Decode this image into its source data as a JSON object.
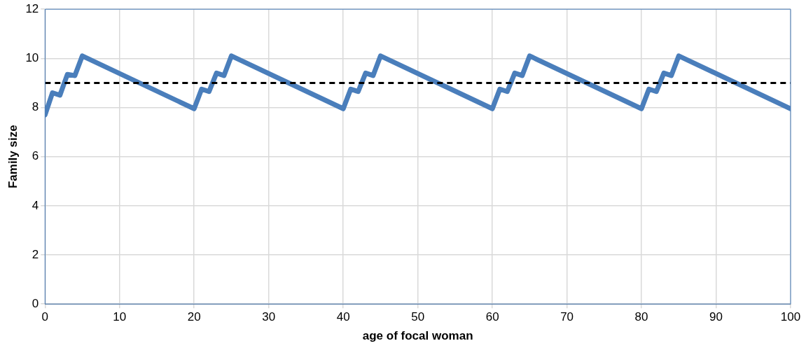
{
  "chart_data": {
    "type": "line",
    "xlabel": "age of focal woman",
    "ylabel": "Family size",
    "x": [
      0,
      1,
      2,
      3,
      4,
      5,
      20,
      21,
      22,
      23,
      24,
      25,
      40,
      41,
      42,
      43,
      44,
      45,
      60,
      61,
      62,
      63,
      64,
      65,
      80,
      81,
      82,
      83,
      84,
      85,
      100
    ],
    "series": [
      {
        "color": "#4a7ebb",
        "values": [
          7.7,
          8.6,
          8.5,
          9.35,
          9.3,
          10.1,
          7.95,
          8.75,
          8.65,
          9.4,
          9.3,
          10.1,
          7.95,
          8.75,
          8.65,
          9.4,
          9.3,
          10.1,
          7.95,
          8.75,
          8.65,
          9.4,
          9.3,
          10.1,
          7.95,
          8.75,
          8.65,
          9.4,
          9.3,
          10.1,
          7.95
        ]
      }
    ],
    "xlim": [
      0,
      100
    ],
    "xticks": [
      0,
      10,
      20,
      30,
      40,
      50,
      60,
      70,
      80,
      90,
      100
    ],
    "ylim": [
      0,
      12
    ],
    "yticks": [
      0,
      2,
      4,
      6,
      8,
      10,
      12
    ],
    "ref_lines": [
      {
        "axis": "y",
        "value": 9,
        "color": "#000000",
        "line_style": "dashed"
      }
    ],
    "grid": true,
    "legend": false,
    "marker": "none",
    "line_style": "solid"
  }
}
